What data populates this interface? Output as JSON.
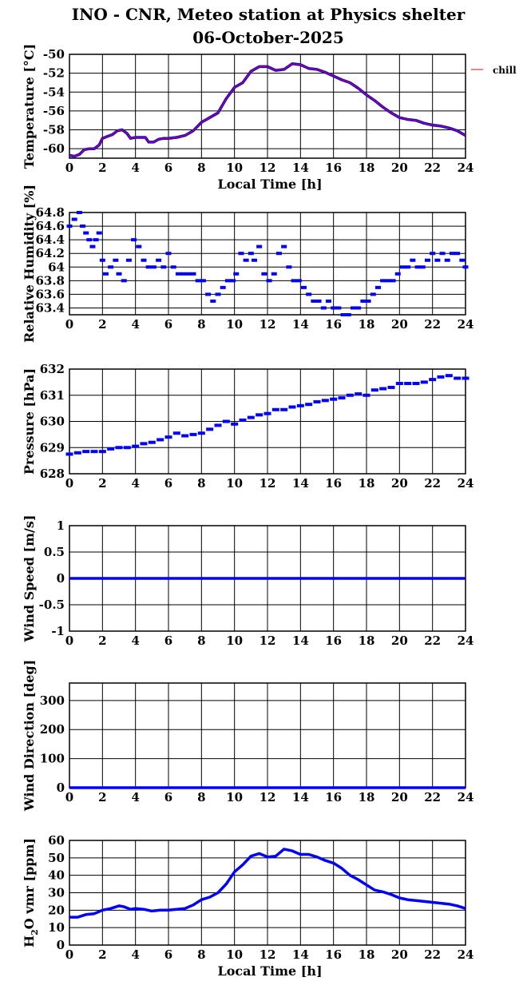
{
  "title": {
    "line1": "INO - CNR, Meteo station at Physics shelter",
    "line2": "06-October-2025"
  },
  "colors": {
    "series": "#0000ff",
    "legend_line": "#ff0000",
    "grid": "#000000",
    "axis": "#000000"
  },
  "chart_data": [
    {
      "type": "line",
      "ylabel": "Temperature [°C]",
      "xlabel": "Local Time [h]",
      "xlim": [
        0,
        24
      ],
      "ylim": [
        -61,
        -50
      ],
      "yticks": [
        -60,
        -58,
        -56,
        -54,
        -52,
        -50
      ],
      "xticks": [
        0,
        2,
        4,
        6,
        8,
        10,
        12,
        14,
        16,
        18,
        20,
        22,
        24
      ],
      "grid": true,
      "legend": "right",
      "legend_entries": [
        "chill"
      ],
      "series": [
        {
          "name": "chill",
          "x": [
            0,
            0.3,
            0.6,
            0.9,
            1.2,
            1.5,
            1.8,
            2.0,
            2.3,
            2.6,
            2.9,
            3.2,
            3.5,
            3.7,
            4.0,
            4.3,
            4.6,
            4.8,
            5.1,
            5.4,
            5.7,
            6.0,
            6.5,
            7.0,
            7.5,
            8.0,
            8.5,
            9.0,
            9.5,
            10.0,
            10.5,
            11.0,
            11.5,
            12.0,
            12.5,
            13.0,
            13.5,
            14.0,
            14.5,
            15.0,
            15.5,
            16.0,
            16.5,
            17.0,
            17.5,
            18.0,
            18.5,
            19.0,
            19.5,
            20.0,
            20.5,
            21.0,
            21.5,
            22.0,
            22.5,
            23.0,
            23.5,
            24.0
          ],
          "y": [
            -60.7,
            -60.8,
            -60.6,
            -60.1,
            -60.0,
            -60.0,
            -59.6,
            -58.9,
            -58.7,
            -58.5,
            -58.1,
            -58.0,
            -58.4,
            -58.9,
            -58.8,
            -58.8,
            -58.8,
            -59.3,
            -59.3,
            -59.0,
            -58.9,
            -58.9,
            -58.8,
            -58.6,
            -58.1,
            -57.2,
            -56.7,
            -56.2,
            -54.7,
            -53.5,
            -53.0,
            -51.8,
            -51.3,
            -51.3,
            -51.7,
            -51.6,
            -51.0,
            -51.1,
            -51.5,
            -51.6,
            -51.9,
            -52.3,
            -52.7,
            -53.0,
            -53.6,
            -54.3,
            -54.9,
            -55.6,
            -56.2,
            -56.7,
            -56.9,
            -57.0,
            -57.3,
            -57.5,
            -57.6,
            -57.8,
            -58.1,
            -58.6
          ]
        }
      ]
    },
    {
      "type": "scatter",
      "ylabel": "Relative Humidity [%]",
      "xlim": [
        0,
        24
      ],
      "ylim": [
        63.3,
        64.8
      ],
      "yticks": [
        63.4,
        63.6,
        63.8,
        64,
        64.2,
        64.4,
        64.6,
        64.8
      ],
      "xticks": [
        0,
        2,
        4,
        6,
        8,
        10,
        12,
        14,
        16,
        18,
        20,
        22,
        24
      ],
      "grid": true,
      "series": [
        {
          "x": [
            0.0,
            0.3,
            0.6,
            0.8,
            1.0,
            1.2,
            1.4,
            1.6,
            1.8,
            2.0,
            2.2,
            2.5,
            2.8,
            3.0,
            3.3,
            3.6,
            3.9,
            4.2,
            4.5,
            4.8,
            5.1,
            5.4,
            5.7,
            6.0,
            6.3,
            6.6,
            6.9,
            7.2,
            7.5,
            7.8,
            8.1,
            8.4,
            8.7,
            9.0,
            9.3,
            9.6,
            9.9,
            10.1,
            10.4,
            10.7,
            11.0,
            11.2,
            11.5,
            11.8,
            12.1,
            12.4,
            12.7,
            13.0,
            13.3,
            13.6,
            13.9,
            14.2,
            14.5,
            14.8,
            15.1,
            15.4,
            15.7,
            16.0,
            16.3,
            16.6,
            16.9,
            17.2,
            17.5,
            17.8,
            18.1,
            18.4,
            18.7,
            19.0,
            19.3,
            19.6,
            19.9,
            20.2,
            20.5,
            20.8,
            21.1,
            21.4,
            21.7,
            22.0,
            22.3,
            22.6,
            22.9,
            23.2,
            23.5,
            23.8,
            24.0
          ],
          "y": [
            64.6,
            64.7,
            64.8,
            64.6,
            64.5,
            64.4,
            64.3,
            64.4,
            64.5,
            64.1,
            63.9,
            64.0,
            64.1,
            63.9,
            63.8,
            64.1,
            64.4,
            64.3,
            64.1,
            64.0,
            64.0,
            64.1,
            64.0,
            64.2,
            64.0,
            63.9,
            63.9,
            63.9,
            63.9,
            63.8,
            63.8,
            63.6,
            63.5,
            63.6,
            63.7,
            63.8,
            63.8,
            63.9,
            64.2,
            64.1,
            64.2,
            64.1,
            64.3,
            63.9,
            63.8,
            63.9,
            64.2,
            64.3,
            64.0,
            63.8,
            63.8,
            63.7,
            63.6,
            63.5,
            63.5,
            63.4,
            63.5,
            63.4,
            63.4,
            63.3,
            63.3,
            63.4,
            63.4,
            63.5,
            63.5,
            63.6,
            63.7,
            63.8,
            63.8,
            63.8,
            63.9,
            64.0,
            64.0,
            64.1,
            64.0,
            64.0,
            64.1,
            64.2,
            64.1,
            64.2,
            64.1,
            64.2,
            64.2,
            64.1,
            64.0
          ]
        }
      ]
    },
    {
      "type": "scatter",
      "ylabel": "Pressure [hPa]",
      "xlim": [
        0,
        24
      ],
      "ylim": [
        628,
        632
      ],
      "yticks": [
        628,
        629,
        630,
        631,
        632
      ],
      "xticks": [
        0,
        2,
        4,
        6,
        8,
        10,
        12,
        14,
        16,
        18,
        20,
        22,
        24
      ],
      "grid": true,
      "series": [
        {
          "x": [
            0,
            0.5,
            1.0,
            1.5,
            2.0,
            2.5,
            3.0,
            3.5,
            4.0,
            4.5,
            5.0,
            5.5,
            6.0,
            6.5,
            7.0,
            7.5,
            8.0,
            8.5,
            9.0,
            9.5,
            10.0,
            10.5,
            11.0,
            11.5,
            12.0,
            12.5,
            13.0,
            13.5,
            14.0,
            14.5,
            15.0,
            15.5,
            16.0,
            16.5,
            17.0,
            17.5,
            18.0,
            18.5,
            19.0,
            19.5,
            20.0,
            20.5,
            21.0,
            21.5,
            22.0,
            22.5,
            23.0,
            23.5,
            24.0
          ],
          "y": [
            628.75,
            628.8,
            628.85,
            628.85,
            628.85,
            628.95,
            629.0,
            629.0,
            629.05,
            629.15,
            629.2,
            629.3,
            629.4,
            629.55,
            629.45,
            629.5,
            629.55,
            629.7,
            629.85,
            630.0,
            629.9,
            630.05,
            630.15,
            630.25,
            630.3,
            630.45,
            630.45,
            630.55,
            630.6,
            630.65,
            630.75,
            630.8,
            630.85,
            630.9,
            631.0,
            631.05,
            631.0,
            631.2,
            631.25,
            631.3,
            631.45,
            631.45,
            631.45,
            631.5,
            631.6,
            631.7,
            631.75,
            631.65,
            631.65
          ]
        }
      ]
    },
    {
      "type": "line",
      "ylabel": "Wind Speed [m/s]",
      "xlim": [
        0,
        24
      ],
      "ylim": [
        -1,
        1
      ],
      "yticks": [
        -1,
        -0.5,
        0,
        0.5,
        1
      ],
      "xticks": [
        0,
        2,
        4,
        6,
        8,
        10,
        12,
        14,
        16,
        18,
        20,
        22,
        24
      ],
      "grid": true,
      "series": [
        {
          "x": [
            0,
            24
          ],
          "y": [
            0,
            0
          ]
        }
      ]
    },
    {
      "type": "line",
      "ylabel": "Wind Direction [deg]",
      "xlim": [
        0,
        24
      ],
      "ylim": [
        0,
        360
      ],
      "yticks": [
        0,
        100,
        200,
        300
      ],
      "xticks": [
        0,
        2,
        4,
        6,
        8,
        10,
        12,
        14,
        16,
        18,
        20,
        22,
        24
      ],
      "grid": true,
      "series": [
        {
          "x": [
            0,
            24
          ],
          "y": [
            0,
            0
          ]
        }
      ]
    },
    {
      "type": "line",
      "ylabel": "H2O vmr [ppm]",
      "xlabel": "Local Time [h]",
      "xlim": [
        0,
        24
      ],
      "ylim": [
        0,
        60
      ],
      "yticks": [
        0,
        10,
        20,
        30,
        40,
        50,
        60
      ],
      "xticks": [
        0,
        2,
        4,
        6,
        8,
        10,
        12,
        14,
        16,
        18,
        20,
        22,
        24
      ],
      "grid": true,
      "series": [
        {
          "x": [
            0,
            0.5,
            1.0,
            1.5,
            2.0,
            2.5,
            3.0,
            3.3,
            3.7,
            4.0,
            4.5,
            5.0,
            5.5,
            6.0,
            6.5,
            7.0,
            7.5,
            8.0,
            8.5,
            9.0,
            9.5,
            10.0,
            10.5,
            11.0,
            11.5,
            12.0,
            12.5,
            13.0,
            13.5,
            14.0,
            14.5,
            15.0,
            15.5,
            16.0,
            16.5,
            17.0,
            17.5,
            18.0,
            18.5,
            19.0,
            19.5,
            20.0,
            20.5,
            21.0,
            21.5,
            22.0,
            22.5,
            23.0,
            23.5,
            24.0
          ],
          "y": [
            16.0,
            16.0,
            17.5,
            18.0,
            20.0,
            21.0,
            22.5,
            22.0,
            20.5,
            21.0,
            20.5,
            19.5,
            20.0,
            20.0,
            20.5,
            21.0,
            23.0,
            26.0,
            27.5,
            30.0,
            35.0,
            42.0,
            46.0,
            51.0,
            52.5,
            50.5,
            51.0,
            55.0,
            54.0,
            52.0,
            52.0,
            50.5,
            48.5,
            47.0,
            44.0,
            40.0,
            37.5,
            34.5,
            31.5,
            30.5,
            29.0,
            27.0,
            26.0,
            25.5,
            25.0,
            24.5,
            24.0,
            23.5,
            22.5,
            21.0
          ]
        }
      ]
    }
  ]
}
